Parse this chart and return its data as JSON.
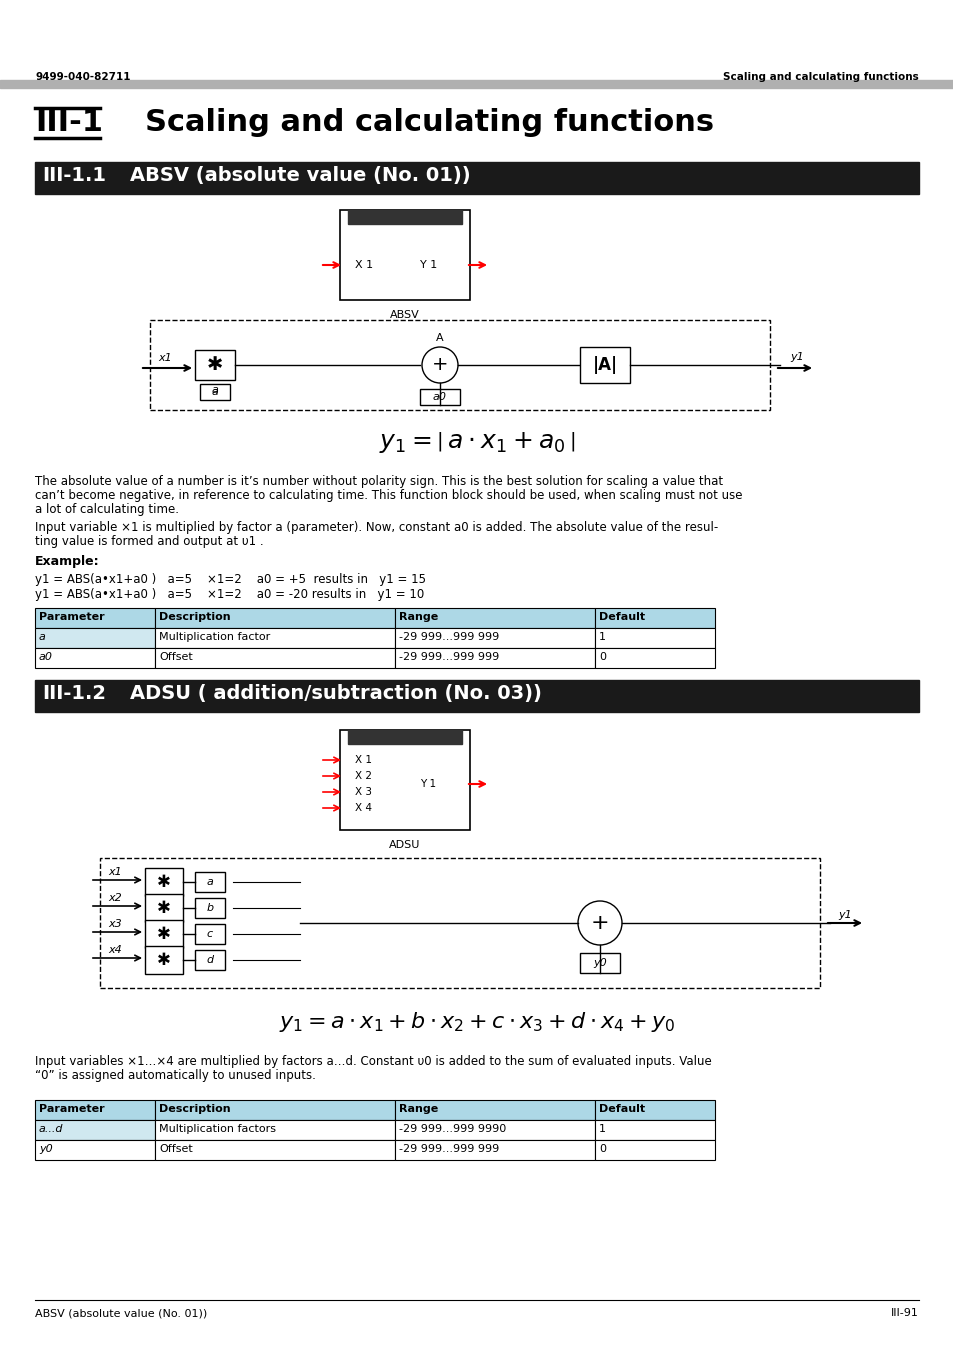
{
  "header_left": "9499-040-82711",
  "header_right": "Scaling and calculating functions",
  "footer_left": "ABSV (absolute value (No. 01))",
  "footer_right": "III-91",
  "chapter_number": "III-1",
  "chapter_title": "Scaling and calculating functions",
  "section1_number": "III-1.1",
  "section1_title": "ABSV (absolute value (No. 01))",
  "section2_number": "III-1.2",
  "section2_title": "ADSU ( addition/subtraction (No. 03))",
  "absv_desc1": "The absolute value of a number is it’s number without polarity sign. This is the best solution for scaling a value that",
  "absv_desc2": "can’t become negative, in reference to calculating time. This function block should be used, when scaling must not use",
  "absv_desc3": "a lot of calculating time.",
  "absv_desc4": "Input variable ×1 is multiplied by factor a (parameter). Now, constant a0 is added. The absolute value of the resul-",
  "absv_desc5": "ting value is formed and output at υ1 .",
  "example_label": "Example:",
  "example_line1": "υ1 = ABS(a•×1+a0 )   a=5    ×1=2    a0 = +5  results in   υ1 = 15",
  "example_line2": "υ1 = ABS(a•×1+a0 )   a=5    ×1=2    a0 = -20 results in   υ1 = 10",
  "adsu_desc1": "Input variables ×1…×4 are multiplied by factors a…d. Constant υ0 is added to the sum of evaluated inputs. Value",
  "adsu_desc2": "“0” is assigned automatically to unused inputs.",
  "table1_headers": [
    "Parameter",
    "Description",
    "Range",
    "Default"
  ],
  "table1_rows": [
    [
      "a",
      "Multiplication factor",
      "-29 999...999 999",
      "1"
    ],
    [
      "a0",
      "Offset",
      "-29 999...999 999",
      "0"
    ]
  ],
  "table2_headers": [
    "Parameter",
    "Description",
    "Range",
    "Default"
  ],
  "table2_rows": [
    [
      "a...d",
      "Multiplication factors",
      "-29 999...999 9990",
      "1"
    ],
    [
      "y0",
      "Offset",
      "-29 999...999 999",
      "0"
    ]
  ],
  "bg_color": "#ffffff",
  "header_bar_color": "#b0b0b0",
  "section_bar_color": "#1a1a1a",
  "section_text_color": "#ffffff",
  "table_header_color": "#add8e6",
  "table_alt_color": "#d0e8f0"
}
